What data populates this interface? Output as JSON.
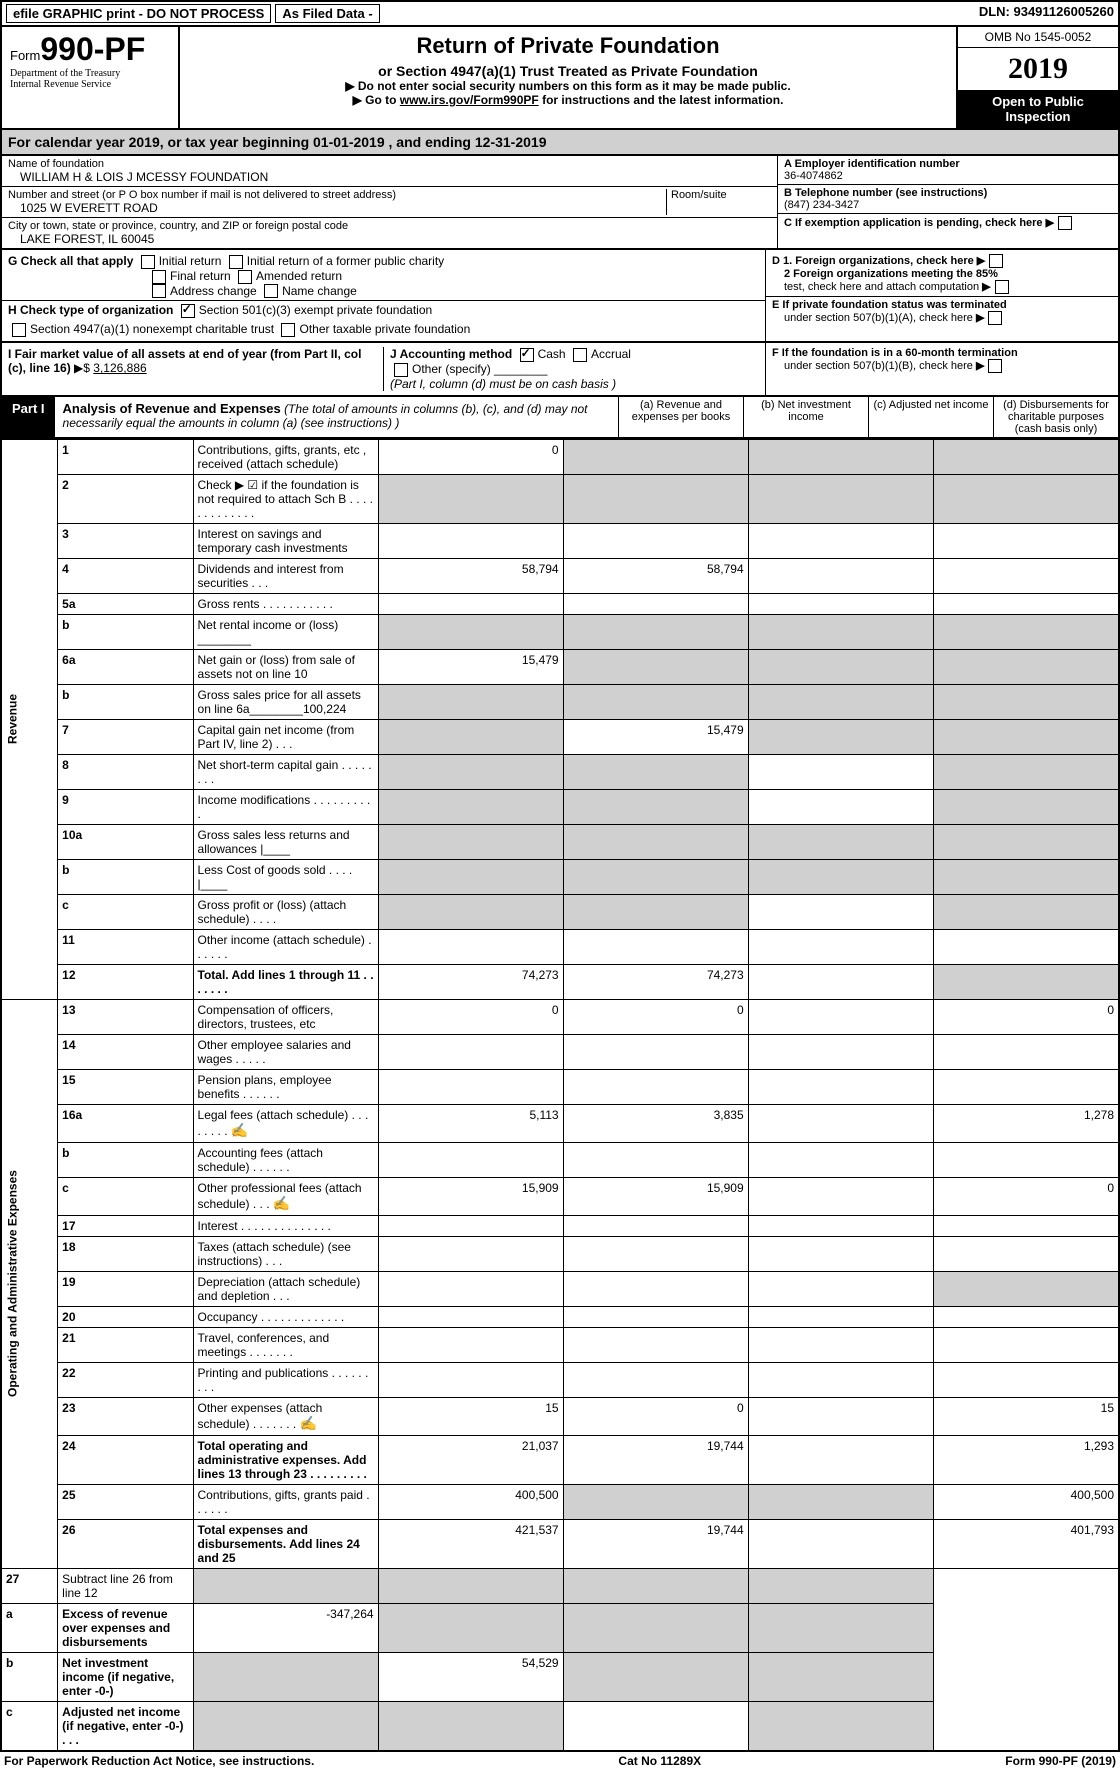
{
  "top": {
    "efile": "efile GRAPHIC print - DO NOT PROCESS",
    "asfiled": "As Filed Data -",
    "dln_label": "DLN:",
    "dln": "93491126005260"
  },
  "form": {
    "form_word": "Form",
    "form_num": "990-PF",
    "dept1": "Department of the Treasury",
    "dept2": "Internal Revenue Service"
  },
  "title": {
    "main": "Return of Private Foundation",
    "sub": "or Section 4947(a)(1) Trust Treated as Private Foundation",
    "instr1": "▶ Do not enter social security numbers on this form as it may be made public.",
    "instr2a": "▶ Go to ",
    "instr2b": "www.irs.gov/Form990PF",
    "instr2c": " for instructions and the latest information."
  },
  "right": {
    "omb": "OMB No 1545-0052",
    "year": "2019",
    "open": "Open to Public Inspection"
  },
  "calyear": {
    "prefix": "For calendar year 2019, or tax year beginning ",
    "begin": "01-01-2019",
    "mid": " , and ending ",
    "end": "12-31-2019"
  },
  "foundation": {
    "name_label": "Name of foundation",
    "name": "WILLIAM H & LOIS J MCESSY FOUNDATION",
    "addr_label": "Number and street (or P O  box number if mail is not delivered to street address)",
    "room_label": "Room/suite",
    "addr": "1025 W EVERETT ROAD",
    "city_label": "City or town, state or province, country, and ZIP or foreign postal code",
    "city": "LAKE FOREST, IL  60045"
  },
  "employer": {
    "a_label": "A Employer identification number",
    "a_val": "36-4074862",
    "b_label": "B Telephone number (see instructions)",
    "b_val": "(847) 234-3427",
    "c_label": "C If exemption application is pending, check here"
  },
  "g": {
    "label": "G Check all that apply",
    "o1": "Initial return",
    "o2": "Initial return of a former public charity",
    "o3": "Final return",
    "o4": "Amended return",
    "o5": "Address change",
    "o6": "Name change"
  },
  "h": {
    "label": "H Check type of organization",
    "o1": "Section 501(c)(3) exempt private foundation",
    "o2": "Section 4947(a)(1) nonexempt charitable trust",
    "o3": "Other taxable private foundation"
  },
  "d": {
    "d1": "D 1. Foreign organizations, check here",
    "d2a": "2 Foreign organizations meeting the 85%",
    "d2b": "test, check here and attach computation",
    "e1": "E  If private foundation status was terminated",
    "e2": "under section 507(b)(1)(A), check here"
  },
  "i": {
    "label": "I Fair market value of all assets at end of year (from Part II, col  (c), line 16)",
    "arrow": "▶$",
    "val": "3,126,886"
  },
  "j": {
    "label": "J Accounting method",
    "cash": "Cash",
    "accrual": "Accrual",
    "other": "Other (specify)",
    "note": "(Part I, column (d) must be on cash basis )"
  },
  "f": {
    "f1": "F  If the foundation is in a 60-month termination",
    "f2": "under section 507(b)(1)(B), check here"
  },
  "part1": {
    "label": "Part I",
    "title": "Analysis of Revenue and Expenses",
    "note": "(The total of amounts in columns (b), (c), and (d) may not necessarily equal the amounts in column (a) (see instructions) )",
    "col_a": "(a) Revenue and expenses per books",
    "col_b": "(b) Net investment income",
    "col_c": "(c) Adjusted net income",
    "col_d": "(d) Disbursements for charitable purposes (cash basis only)"
  },
  "side": {
    "revenue": "Revenue",
    "expenses": "Operating and Administrative Expenses"
  },
  "rows": [
    {
      "n": "1",
      "d": "Contributions, gifts, grants, etc , received (attach schedule)",
      "a": "0",
      "b": "",
      "c": "",
      "dd": "",
      "sb": true,
      "sc": true,
      "sd": true
    },
    {
      "n": "2",
      "d": "Check ▶ ☑ if the foundation is not required to attach Sch  B        .   .   .   .   .   .   .   .   .   .   .   .   .",
      "a": "",
      "b": "",
      "c": "",
      "dd": "",
      "sa": true,
      "sb": true,
      "sc": true,
      "sd": true
    },
    {
      "n": "3",
      "d": "Interest on savings and temporary cash investments",
      "a": "",
      "b": "",
      "c": "",
      "dd": ""
    },
    {
      "n": "4",
      "d": "Dividends and interest from securities     .   .   .",
      "a": "58,794",
      "b": "58,794",
      "c": "",
      "dd": ""
    },
    {
      "n": "5a",
      "d": "Gross rents    .   .   .   .   .   .   .   .   .   .   .",
      "a": "",
      "b": "",
      "c": "",
      "dd": ""
    },
    {
      "n": "b",
      "d": "Net rental income or (loss)  ________",
      "a": "",
      "b": "",
      "c": "",
      "dd": "",
      "sa": true,
      "sb": true,
      "sc": true,
      "sd": true
    },
    {
      "n": "6a",
      "d": "Net gain or (loss) from sale of assets not on line 10",
      "a": "15,479",
      "b": "",
      "c": "",
      "dd": "",
      "sb": true,
      "sc": true,
      "sd": true
    },
    {
      "n": "b",
      "d": "Gross sales price for all assets on line 6a________100,224",
      "a": "",
      "b": "",
      "c": "",
      "dd": "",
      "sa": true,
      "sb": true,
      "sc": true,
      "sd": true
    },
    {
      "n": "7",
      "d": "Capital gain net income (from Part IV, line 2)   .   .   .",
      "a": "",
      "b": "15,479",
      "c": "",
      "dd": "",
      "sa": true,
      "sc": true,
      "sd": true
    },
    {
      "n": "8",
      "d": "Net short-term capital gain  .   .   .   .   .   .   .   .",
      "a": "",
      "b": "",
      "c": "",
      "dd": "",
      "sa": true,
      "sb": true,
      "sd": true
    },
    {
      "n": "9",
      "d": "Income modifications .   .   .   .   .   .   .   .   .   .",
      "a": "",
      "b": "",
      "c": "",
      "dd": "",
      "sa": true,
      "sb": true,
      "sd": true
    },
    {
      "n": "10a",
      "d": "Gross sales less returns and allowances |____",
      "a": "",
      "b": "",
      "c": "",
      "dd": "",
      "sa": true,
      "sb": true,
      "sc": true,
      "sd": true
    },
    {
      "n": "b",
      "d": "Less  Cost of goods sold    .   .   .   . |____",
      "a": "",
      "b": "",
      "c": "",
      "dd": "",
      "sa": true,
      "sb": true,
      "sc": true,
      "sd": true
    },
    {
      "n": "c",
      "d": "Gross profit or (loss) (attach schedule)   .   .   .   .",
      "a": "",
      "b": "",
      "c": "",
      "dd": "",
      "sa": true,
      "sb": true,
      "sd": true
    },
    {
      "n": "11",
      "d": "Other income (attach schedule)   .   .   .   .   .   .",
      "a": "",
      "b": "",
      "c": "",
      "dd": ""
    },
    {
      "n": "12",
      "d": "Total. Add lines 1 through 11   .   .   .   .   .   .   .",
      "a": "74,273",
      "b": "74,273",
      "c": "",
      "dd": "",
      "bold": true,
      "sd": true
    }
  ],
  "exp_rows": [
    {
      "n": "13",
      "d": "Compensation of officers, directors, trustees, etc",
      "a": "0",
      "b": "0",
      "c": "",
      "dd": "0"
    },
    {
      "n": "14",
      "d": "Other employee salaries and wages    .   .   .   .   .",
      "a": "",
      "b": "",
      "c": "",
      "dd": ""
    },
    {
      "n": "15",
      "d": "Pension plans, employee benefits  .   .   .   .   .   .",
      "a": "",
      "b": "",
      "c": "",
      "dd": ""
    },
    {
      "n": "16a",
      "d": "Legal fees (attach schedule) .   .   .   .   .   .   .   .",
      "icon": true,
      "a": "5,113",
      "b": "3,835",
      "c": "",
      "dd": "1,278"
    },
    {
      "n": "b",
      "d": "Accounting fees (attach schedule)  .   .   .   .   .   .",
      "a": "",
      "b": "",
      "c": "",
      "dd": ""
    },
    {
      "n": "c",
      "d": "Other professional fees (attach schedule)   .   .   .",
      "icon": true,
      "a": "15,909",
      "b": "15,909",
      "c": "",
      "dd": "0"
    },
    {
      "n": "17",
      "d": "Interest  .   .   .   .   .   .   .   .   .   .   .   .   .   .",
      "a": "",
      "b": "",
      "c": "",
      "dd": ""
    },
    {
      "n": "18",
      "d": "Taxes (attach schedule) (see instructions)    .   .   .",
      "a": "",
      "b": "",
      "c": "",
      "dd": ""
    },
    {
      "n": "19",
      "d": "Depreciation (attach schedule) and depletion   .   .   .",
      "a": "",
      "b": "",
      "c": "",
      "dd": "",
      "sd": true
    },
    {
      "n": "20",
      "d": "Occupancy   .   .   .   .   .   .   .   .   .   .   .   .   .",
      "a": "",
      "b": "",
      "c": "",
      "dd": ""
    },
    {
      "n": "21",
      "d": "Travel, conferences, and meetings .   .   .   .   .   .   .",
      "a": "",
      "b": "",
      "c": "",
      "dd": ""
    },
    {
      "n": "22",
      "d": "Printing and publications .   .   .   .   .   .   .   .   .",
      "a": "",
      "b": "",
      "c": "",
      "dd": ""
    },
    {
      "n": "23",
      "d": "Other expenses (attach schedule) .   .   .   .   .   .   .",
      "icon": true,
      "a": "15",
      "b": "0",
      "c": "",
      "dd": "15"
    },
    {
      "n": "24",
      "d": "Total operating and administrative expenses. Add lines 13 through 23   .   .   .   .   .   .   .   .   .",
      "bold": true,
      "a": "21,037",
      "b": "19,744",
      "c": "",
      "dd": "1,293"
    },
    {
      "n": "25",
      "d": "Contributions, gifts, grants paid    .   .   .   .   .   .",
      "a": "400,500",
      "b": "",
      "c": "",
      "dd": "400,500",
      "sb": true,
      "sc": true
    },
    {
      "n": "26",
      "d": "Total expenses and disbursements. Add lines 24 and 25",
      "bold": true,
      "a": "421,537",
      "b": "19,744",
      "c": "",
      "dd": "401,793"
    }
  ],
  "sum_rows": [
    {
      "n": "27",
      "d": "Subtract line 26 from line 12",
      "a": "",
      "b": "",
      "c": "",
      "dd": "",
      "sa": true,
      "sb": true,
      "sc": true,
      "sd": true
    },
    {
      "n": "a",
      "d": "Excess of revenue over expenses and disbursements",
      "bold": true,
      "a": "-347,264",
      "b": "",
      "c": "",
      "dd": "",
      "sb": true,
      "sc": true,
      "sd": true
    },
    {
      "n": "b",
      "d": "Net investment income (if negative, enter -0-)",
      "bold": true,
      "a": "",
      "b": "54,529",
      "c": "",
      "dd": "",
      "sa": true,
      "sc": true,
      "sd": true
    },
    {
      "n": "c",
      "d": "Adjusted net income (if negative, enter -0-)  .   .   .",
      "bold": true,
      "a": "",
      "b": "",
      "c": "",
      "dd": "",
      "sa": true,
      "sb": true,
      "sd": true
    }
  ],
  "footer": {
    "left": "For Paperwork Reduction Act Notice, see instructions.",
    "mid": "Cat  No  11289X",
    "right": "Form 990-PF (2019)"
  }
}
